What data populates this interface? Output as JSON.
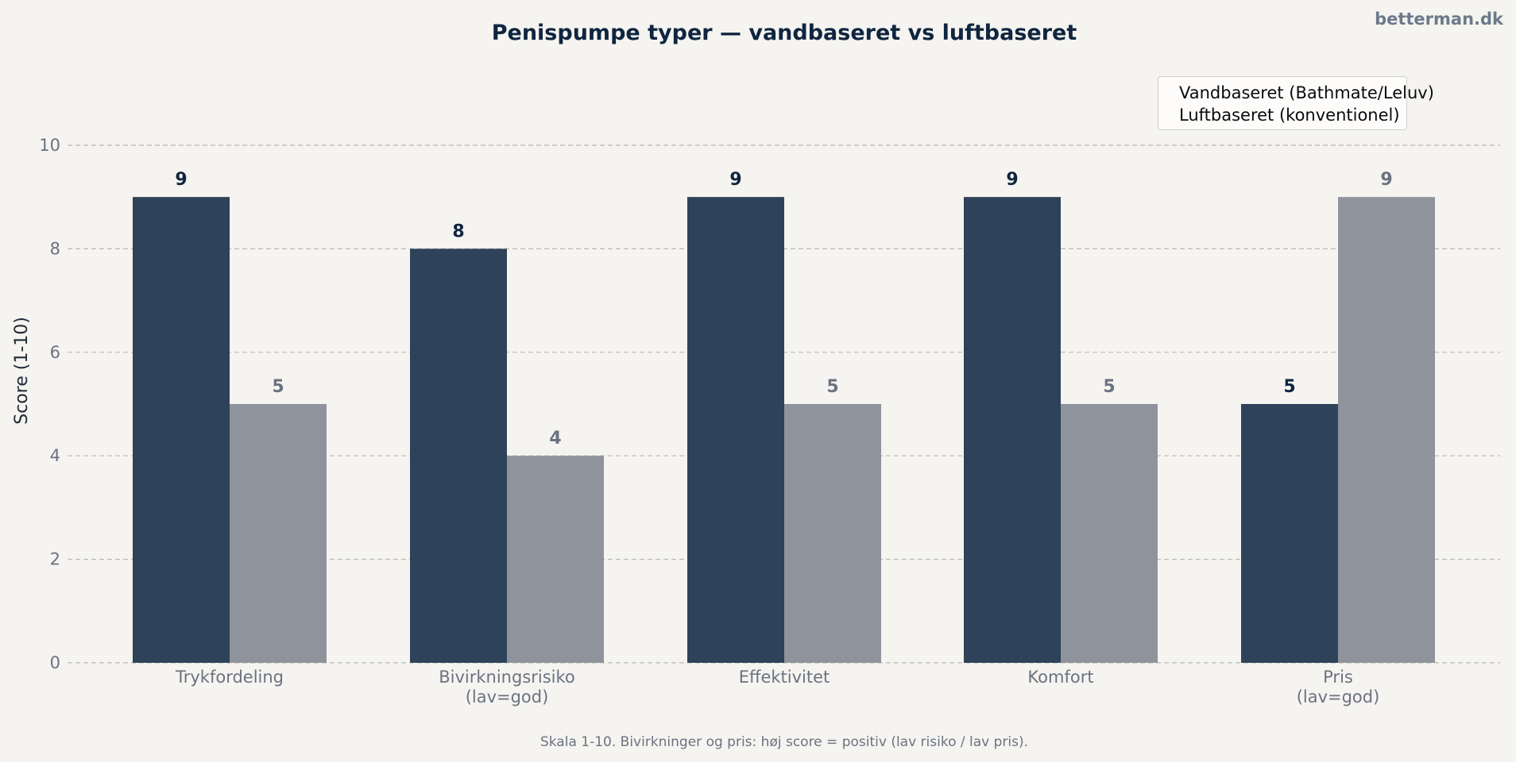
{
  "brand": "betterman.dk",
  "footnote": "Skala 1-10. Bivirkninger og pris: høj score = positiv (lav risiko / lav pris).",
  "colors": {
    "series_1": "#2e4259",
    "series_2": "#8e939c",
    "series_1_label": "#0f2540",
    "series_2_label": "#6b7280",
    "axis_text": "#6b7280",
    "grid": "#b8b8b8"
  },
  "chart_data": {
    "type": "bar",
    "title": "Penispumpe typer — vandbaseret vs luftbaseret",
    "xlabel": "",
    "ylabel": "Score (1-10)",
    "ylim": [
      0,
      10
    ],
    "yticks": [
      0,
      2,
      4,
      6,
      8,
      10
    ],
    "grid": true,
    "legend_position": "top-right",
    "categories": [
      [
        "Trykfordeling"
      ],
      [
        "Bivirkningsrisiko",
        "(lav=god)"
      ],
      [
        "Effektivitet"
      ],
      [
        "Komfort"
      ],
      [
        "Pris",
        "(lav=god)"
      ]
    ],
    "series": [
      {
        "name": "Vandbaseret (Bathmate/Leluv)",
        "values": [
          9,
          8,
          9,
          9,
          5
        ]
      },
      {
        "name": "Luftbaseret (konventionel)",
        "values": [
          5,
          4,
          5,
          5,
          9
        ]
      }
    ]
  }
}
